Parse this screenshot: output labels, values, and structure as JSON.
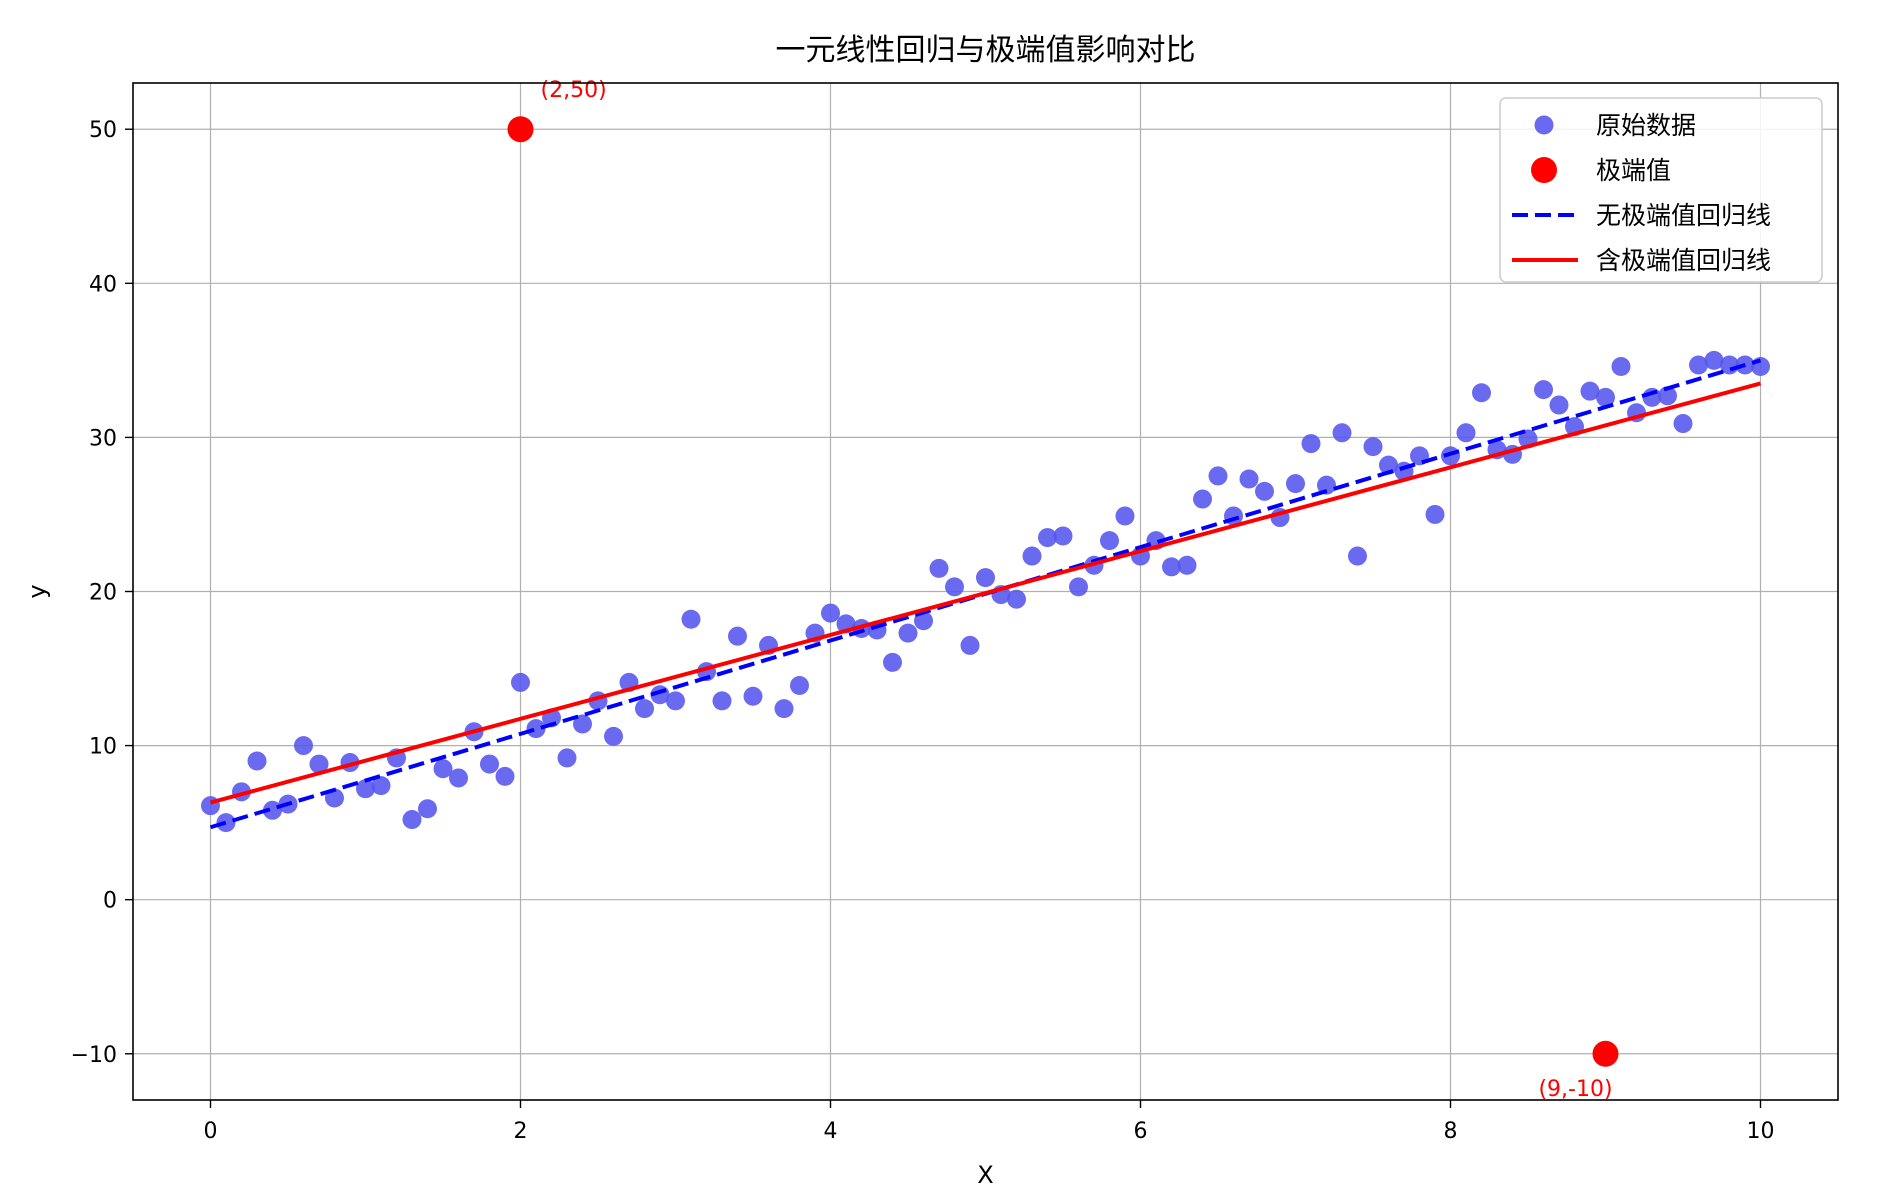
{
  "chart_data": {
    "type": "scatter",
    "title": "一元线性回归与极端值影响对比",
    "xlabel": "X",
    "ylabel": "y",
    "xlim": [
      -0.5,
      10.5
    ],
    "ylim": [
      -13,
      53
    ],
    "xticks": [
      0,
      2,
      4,
      6,
      8,
      10
    ],
    "yticks": [
      -10,
      0,
      10,
      20,
      30,
      40,
      50
    ],
    "grid": true,
    "legend_position": "top-right",
    "colors": {
      "scatter": "#5555ee",
      "outlier": "#ff0000",
      "line_clean": "#0000ff",
      "line_with_outliers": "#ff0000"
    },
    "series": [
      {
        "name": "原始数据",
        "kind": "scatter",
        "x": [
          0.0,
          0.1,
          0.2,
          0.3,
          0.4,
          0.5,
          0.6,
          0.7,
          0.8,
          0.9,
          1.0,
          1.1,
          1.2,
          1.3,
          1.4,
          1.5,
          1.6,
          1.7,
          1.8,
          1.9,
          2.0,
          2.1,
          2.2,
          2.3,
          2.4,
          2.5,
          2.6,
          2.7,
          2.8,
          2.9,
          3.0,
          3.1,
          3.2,
          3.3,
          3.4,
          3.5,
          3.6,
          3.7,
          3.8,
          3.9,
          4.0,
          4.1,
          4.2,
          4.3,
          4.4,
          4.5,
          4.6,
          4.7,
          4.8,
          4.9,
          5.0,
          5.1,
          5.2,
          5.3,
          5.4,
          5.5,
          5.6,
          5.7,
          5.8,
          5.9,
          6.0,
          6.1,
          6.2,
          6.3,
          6.4,
          6.5,
          6.6,
          6.7,
          6.8,
          6.9,
          7.0,
          7.1,
          7.2,
          7.3,
          7.4,
          7.5,
          7.6,
          7.7,
          7.8,
          7.9,
          8.0,
          8.1,
          8.2,
          8.3,
          8.4,
          8.5,
          8.6,
          8.7,
          8.8,
          8.9,
          9.0,
          9.1,
          9.2,
          9.3,
          9.4,
          9.5,
          9.6,
          9.7,
          9.8,
          9.9,
          10.0
        ],
        "y": [
          6.1,
          5.0,
          7.0,
          9.0,
          5.8,
          6.2,
          10.0,
          8.8,
          6.6,
          8.9,
          7.2,
          7.4,
          9.2,
          5.2,
          5.9,
          8.5,
          7.9,
          10.9,
          8.8,
          8.0,
          14.1,
          11.1,
          11.8,
          9.2,
          11.4,
          12.9,
          10.6,
          14.1,
          12.4,
          13.3,
          12.9,
          18.2,
          14.8,
          12.9,
          17.1,
          13.2,
          16.5,
          12.4,
          13.9,
          17.3,
          18.6,
          17.9,
          17.6,
          17.5,
          15.4,
          17.3,
          18.1,
          21.5,
          20.3,
          16.5,
          20.9,
          19.8,
          19.5,
          22.3,
          23.5,
          23.6,
          20.3,
          21.7,
          23.3,
          24.9,
          22.3,
          23.3,
          21.6,
          21.7,
          26.0,
          27.5,
          24.9,
          27.3,
          26.5,
          24.8,
          27.0,
          29.6,
          26.9,
          30.3,
          22.3,
          29.4,
          28.2,
          27.8,
          28.8,
          25.0,
          28.8,
          30.3,
          32.9,
          29.2,
          28.9,
          29.9,
          33.1,
          32.1,
          30.7,
          33.0,
          32.6,
          34.6,
          31.6,
          32.6,
          32.7,
          30.9,
          34.7,
          35.0,
          34.7,
          34.7,
          34.6
        ]
      },
      {
        "name": "极端值",
        "kind": "scatter",
        "x": [
          2,
          9
        ],
        "y": [
          50,
          -10
        ]
      },
      {
        "name": "无极端值回归线",
        "kind": "line",
        "style": "dashed",
        "x": [
          0,
          10
        ],
        "y": [
          4.7,
          35.0
        ]
      },
      {
        "name": "含极端值回归线",
        "kind": "line",
        "style": "solid",
        "x": [
          0,
          10
        ],
        "y": [
          6.3,
          33.5
        ]
      }
    ],
    "annotations": [
      {
        "text": "(2,50)",
        "x": 2,
        "y": 50,
        "placement": "above-right"
      },
      {
        "text": "(9,-10)",
        "x": 9,
        "y": -10,
        "placement": "below-left"
      }
    ]
  }
}
